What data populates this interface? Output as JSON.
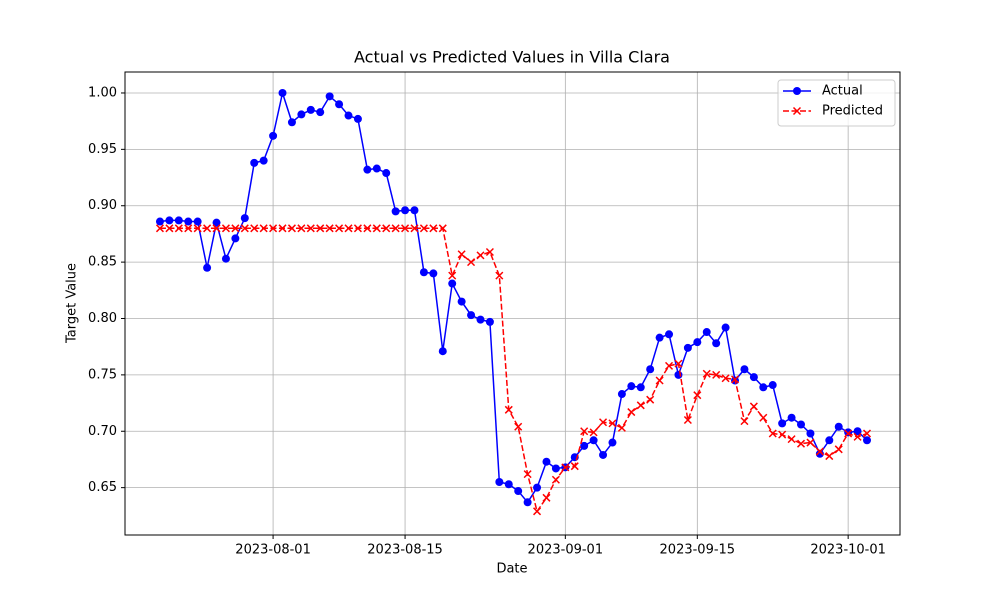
{
  "chart_data": {
    "type": "line",
    "title": "Actual vs Predicted Values in Villa Clara",
    "xlabel": "Date",
    "ylabel": "Target Value",
    "x": [
      "2023-07-20",
      "2023-07-21",
      "2023-07-22",
      "2023-07-23",
      "2023-07-24",
      "2023-07-25",
      "2023-07-26",
      "2023-07-27",
      "2023-07-28",
      "2023-07-29",
      "2023-07-30",
      "2023-07-31",
      "2023-08-01",
      "2023-08-02",
      "2023-08-03",
      "2023-08-04",
      "2023-08-05",
      "2023-08-06",
      "2023-08-07",
      "2023-08-08",
      "2023-08-09",
      "2023-08-10",
      "2023-08-11",
      "2023-08-12",
      "2023-08-13",
      "2023-08-14",
      "2023-08-15",
      "2023-08-16",
      "2023-08-17",
      "2023-08-18",
      "2023-08-19",
      "2023-08-20",
      "2023-08-21",
      "2023-08-22",
      "2023-08-23",
      "2023-08-24",
      "2023-08-25",
      "2023-08-26",
      "2023-08-27",
      "2023-08-28",
      "2023-08-29",
      "2023-08-30",
      "2023-08-31",
      "2023-09-01",
      "2023-09-02",
      "2023-09-03",
      "2023-09-04",
      "2023-09-05",
      "2023-09-06",
      "2023-09-07",
      "2023-09-08",
      "2023-09-09",
      "2023-09-10",
      "2023-09-11",
      "2023-09-12",
      "2023-09-13",
      "2023-09-14",
      "2023-09-15",
      "2023-09-16",
      "2023-09-17",
      "2023-09-18",
      "2023-09-19",
      "2023-09-20",
      "2023-09-21",
      "2023-09-22",
      "2023-09-23",
      "2023-09-24",
      "2023-09-25",
      "2023-09-26",
      "2023-09-27",
      "2023-09-28",
      "2023-09-29",
      "2023-09-30",
      "2023-10-01",
      "2023-10-02",
      "2023-10-03"
    ],
    "series": [
      {
        "name": "Actual",
        "color": "#0000ff",
        "marker": "circle",
        "linestyle": "solid",
        "values": [
          0.886,
          0.887,
          0.887,
          0.886,
          0.886,
          0.845,
          0.885,
          0.853,
          0.871,
          0.889,
          0.938,
          0.94,
          0.962,
          1.0,
          0.974,
          0.981,
          0.985,
          0.983,
          0.997,
          0.99,
          0.98,
          0.977,
          0.932,
          0.933,
          0.929,
          0.895,
          0.896,
          0.896,
          0.841,
          0.84,
          0.771,
          0.831,
          0.815,
          0.803,
          0.799,
          0.797,
          0.655,
          0.653,
          0.647,
          0.637,
          0.65,
          0.673,
          0.667,
          0.668,
          0.677,
          0.687,
          0.692,
          0.679,
          0.69,
          0.733,
          0.74,
          0.739,
          0.755,
          0.783,
          0.786,
          0.75,
          0.774,
          0.779,
          0.788,
          0.778,
          0.792,
          0.745,
          0.755,
          0.748,
          0.739,
          0.741,
          0.707,
          0.712,
          0.706,
          0.698,
          0.68,
          0.692,
          0.704,
          0.699,
          0.7,
          0.692
        ]
      },
      {
        "name": "Predicted",
        "color": "#ff0000",
        "marker": "x",
        "linestyle": "dashed",
        "values": [
          0.88,
          0.88,
          0.88,
          0.88,
          0.88,
          0.88,
          0.88,
          0.88,
          0.88,
          0.88,
          0.88,
          0.88,
          0.88,
          0.88,
          0.88,
          0.88,
          0.88,
          0.88,
          0.88,
          0.88,
          0.88,
          0.88,
          0.88,
          0.88,
          0.88,
          0.88,
          0.88,
          0.88,
          0.88,
          0.88,
          0.88,
          0.838,
          0.857,
          0.85,
          0.856,
          0.859,
          0.838,
          0.719,
          0.704,
          0.662,
          0.629,
          0.641,
          0.657,
          0.668,
          0.669,
          0.7,
          0.699,
          0.708,
          0.707,
          0.703,
          0.717,
          0.723,
          0.728,
          0.745,
          0.758,
          0.76,
          0.71,
          0.732,
          0.751,
          0.75,
          0.747,
          0.746,
          0.709,
          0.722,
          0.712,
          0.698,
          0.697,
          0.693,
          0.689,
          0.69,
          0.682,
          0.678,
          0.684,
          0.698,
          0.695,
          0.698
        ]
      }
    ],
    "xlim": [
      "2023-07-16T07:00:00Z",
      "2023-10-06T12:00:00Z"
    ],
    "xticks": [
      "2023-08-01",
      "2023-08-15",
      "2023-09-01",
      "2023-09-15",
      "2023-10-01"
    ],
    "ylim": [
      0.608,
      1.0186
    ],
    "yticks": [
      0.65,
      {
        "value": 0.7,
        "label": "0.70"
      },
      0.75,
      {
        "value": 0.8,
        "label": "0.80"
      },
      0.85,
      {
        "value": 0.9,
        "label": "0.90"
      },
      0.95,
      {
        "value": 1,
        "label": "1.00"
      }
    ],
    "grid": true,
    "legend": "upper right"
  }
}
